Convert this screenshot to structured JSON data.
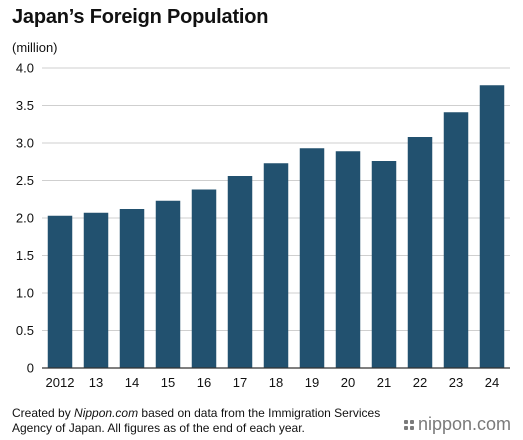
{
  "title": "Japan’s Foreign Population",
  "footnote": {
    "before": "Created by ",
    "source": "Nippon.com",
    "after": " based on data from the Immigration Services Agency of Japan. All figures as of the end of each year."
  },
  "logo_text": "nippon.com",
  "colors": {
    "bar": "#22516f",
    "grid": "#cfcfcf",
    "axis": "#333333",
    "text": "#111111"
  },
  "chart_data": {
    "type": "bar",
    "title": "Japan’s Foreign Population",
    "ylabel": "(million)",
    "xlabel": "",
    "categories": [
      "2012",
      "13",
      "14",
      "15",
      "16",
      "17",
      "18",
      "19",
      "20",
      "21",
      "22",
      "23",
      "24"
    ],
    "values": [
      2.03,
      2.07,
      2.12,
      2.23,
      2.38,
      2.56,
      2.73,
      2.93,
      2.89,
      2.76,
      3.08,
      3.41,
      3.77
    ],
    "ylim": [
      0,
      4.0
    ],
    "yticks": [
      "0",
      "0.5",
      "1.0",
      "1.5",
      "2.0",
      "2.5",
      "3.0",
      "3.5",
      "4.0"
    ],
    "grid": true
  }
}
